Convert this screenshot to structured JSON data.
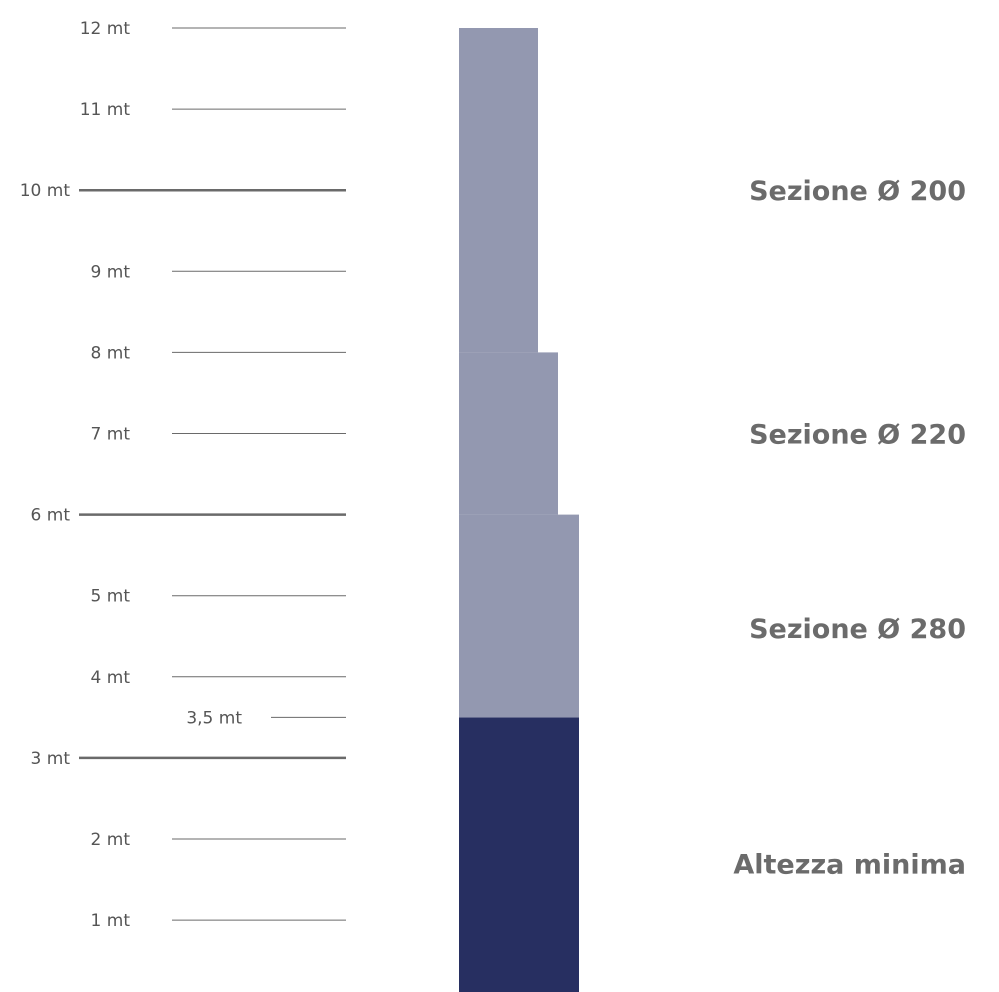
{
  "scale": {
    "unit": "mt",
    "marks": [
      {
        "value": 12,
        "label": "12 mt",
        "major": false
      },
      {
        "value": 11,
        "label": "11 mt",
        "major": false
      },
      {
        "value": 10,
        "label": "10 mt",
        "major": true
      },
      {
        "value": 9,
        "label": "9 mt",
        "major": false
      },
      {
        "value": 8,
        "label": "8 mt",
        "major": false
      },
      {
        "value": 7,
        "label": "7 mt",
        "major": false
      },
      {
        "value": 6,
        "label": "6 mt",
        "major": true
      },
      {
        "value": 5,
        "label": "5 mt",
        "major": false
      },
      {
        "value": 4,
        "label": "4 mt",
        "major": false
      },
      {
        "value": 3.5,
        "label": "3,5 mt",
        "major": false,
        "intermediate": true
      },
      {
        "value": 3,
        "label": "3 mt",
        "major": true
      },
      {
        "value": 2,
        "label": "2 mt",
        "major": false
      },
      {
        "value": 1,
        "label": "1 mt",
        "major": false
      }
    ]
  },
  "pole": {
    "segments": [
      {
        "from": 0,
        "to": 3.5,
        "diameter_level": 3,
        "color": "#272f61"
      },
      {
        "from": 3.5,
        "to": 6,
        "diameter_level": 3,
        "color": "#9398b0"
      },
      {
        "from": 6,
        "to": 8,
        "diameter_level": 2,
        "color": "#9398b0"
      },
      {
        "from": 8,
        "to": 12,
        "diameter_level": 1,
        "color": "#9398b0"
      }
    ]
  },
  "sections": [
    {
      "label": "Sezione Ø 200",
      "center_value": 10
    },
    {
      "label": "Sezione Ø 220",
      "center_value": 7
    },
    {
      "label": "Sezione Ø 280",
      "center_value": 4.6
    },
    {
      "label": "Altezza minima",
      "center_value": 1.7
    }
  ],
  "colors": {
    "dark": "#272f61",
    "light": "#9398b0",
    "tick": "#6a6a6a",
    "label": "#555555",
    "section_label": "#6b6b6b"
  }
}
